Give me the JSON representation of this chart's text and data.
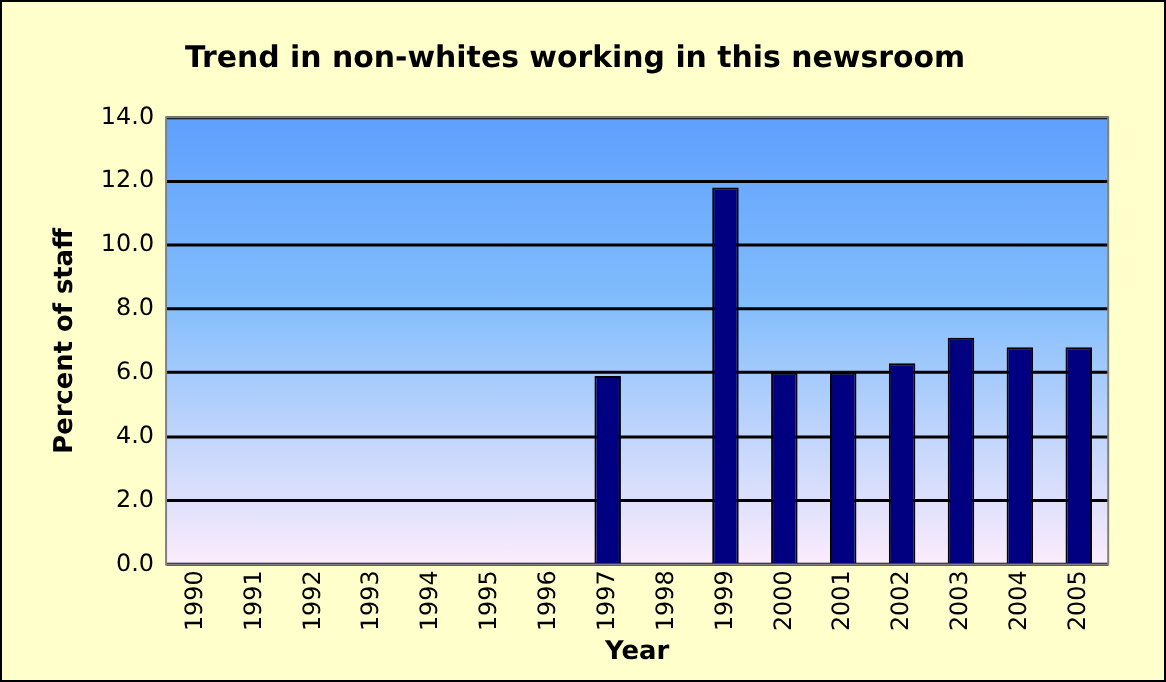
{
  "chart_data": {
    "type": "bar",
    "title": "Trend in non-whites working in this newsroom",
    "xlabel": "Year",
    "ylabel": "Percent of staff",
    "categories": [
      "1990",
      "1991",
      "1992",
      "1993",
      "1994",
      "1995",
      "1996",
      "1997",
      "1998",
      "1999",
      "2000",
      "2001",
      "2002",
      "2003",
      "2004",
      "2005"
    ],
    "values": [
      null,
      null,
      null,
      null,
      null,
      null,
      null,
      5.9,
      null,
      11.8,
      6.0,
      6.0,
      6.3,
      7.1,
      6.8,
      6.8
    ],
    "color": "#000080",
    "ylim": [
      0,
      14
    ],
    "yticks": [
      {
        "value": 0,
        "label": "0.0"
      },
      {
        "value": 2,
        "label": "2.0"
      },
      {
        "value": 4,
        "label": "4.0"
      },
      {
        "value": 6,
        "label": "6.0"
      },
      {
        "value": 8,
        "label": "8.0"
      },
      {
        "value": 10,
        "label": "10.0"
      },
      {
        "value": 12,
        "label": "12.0"
      },
      {
        "value": 14,
        "label": "14.0"
      }
    ],
    "grid": "y",
    "legend": false
  }
}
